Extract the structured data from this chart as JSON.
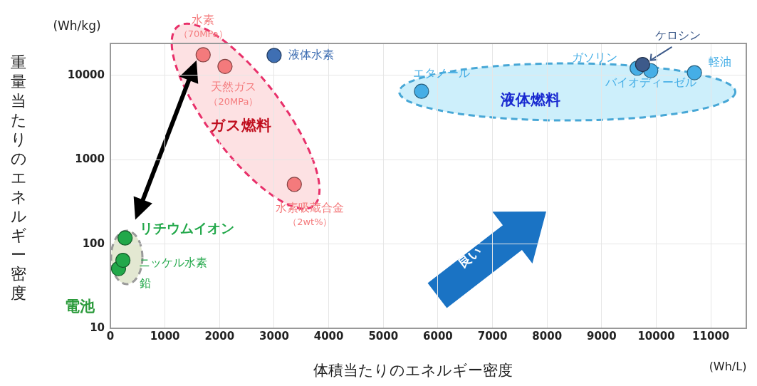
{
  "chart_data": {
    "type": "scatter",
    "xlabel": "体積当たりのエネルギー密度",
    "ylabel": "重量当たりのエネルギー密度",
    "xlim": [
      0,
      11650
    ],
    "xticks": [
      0,
      1000,
      2000,
      3000,
      4000,
      5000,
      6000,
      7000,
      8000,
      9000,
      10000,
      11000
    ],
    "ylim": [
      10,
      24000
    ],
    "yticks": [
      10,
      100,
      1000,
      10000
    ],
    "log": "y",
    "grid": true,
    "legend": false,
    "marker": "circle",
    "series": [
      {
        "name": "水素（70MPa）",
        "color": "#f47a7c",
        "x": [
          1700
        ],
        "values": [
          17600
        ]
      },
      {
        "name": "天然ガス（20MPa）",
        "color": "#f47a7c",
        "x": [
          2100
        ],
        "values": [
          12800
        ]
      },
      {
        "name": "液体水素",
        "color": "#3f6fb3",
        "x": [
          3000
        ],
        "values": [
          17300
        ]
      },
      {
        "name": "水素吸蔵合金（2wt%）",
        "color": "#f47a7c",
        "x": [
          3370
        ],
        "values": [
          510
        ]
      },
      {
        "name": "エタノール",
        "color": "#45aee6",
        "x": [
          5700
        ],
        "values": [
          6500
        ]
      },
      {
        "name": "ガソリン",
        "color": "#45aee6",
        "x": [
          9650
        ],
        "values": [
          12200
        ]
      },
      {
        "name": "バイオディーゼル",
        "color": "#45aee6",
        "x": [
          9900
        ],
        "values": [
          11400
        ]
      },
      {
        "name": "ケロシン",
        "color": "#3d5a8a",
        "x": [
          9750
        ],
        "values": [
          13500
        ]
      },
      {
        "name": "軽油",
        "color": "#45aee6",
        "x": [
          10700
        ],
        "values": [
          10800
        ]
      },
      {
        "name": "鉛",
        "color": "#22a84a",
        "x": [
          150
        ],
        "values": [
          51
        ]
      },
      {
        "name": "ニッケル水素",
        "color": "#22a84a",
        "x": [
          230
        ],
        "values": [
          64
        ]
      },
      {
        "name": "リチウムイオン",
        "color": "#22a84a",
        "x": [
          270
        ],
        "values": [
          118
        ]
      }
    ],
    "annotations": [
      "ガス燃料",
      "液体燃料",
      "電池",
      "(Wh/kg)",
      "(Wh/L)",
      "良い"
    ]
  }
}
